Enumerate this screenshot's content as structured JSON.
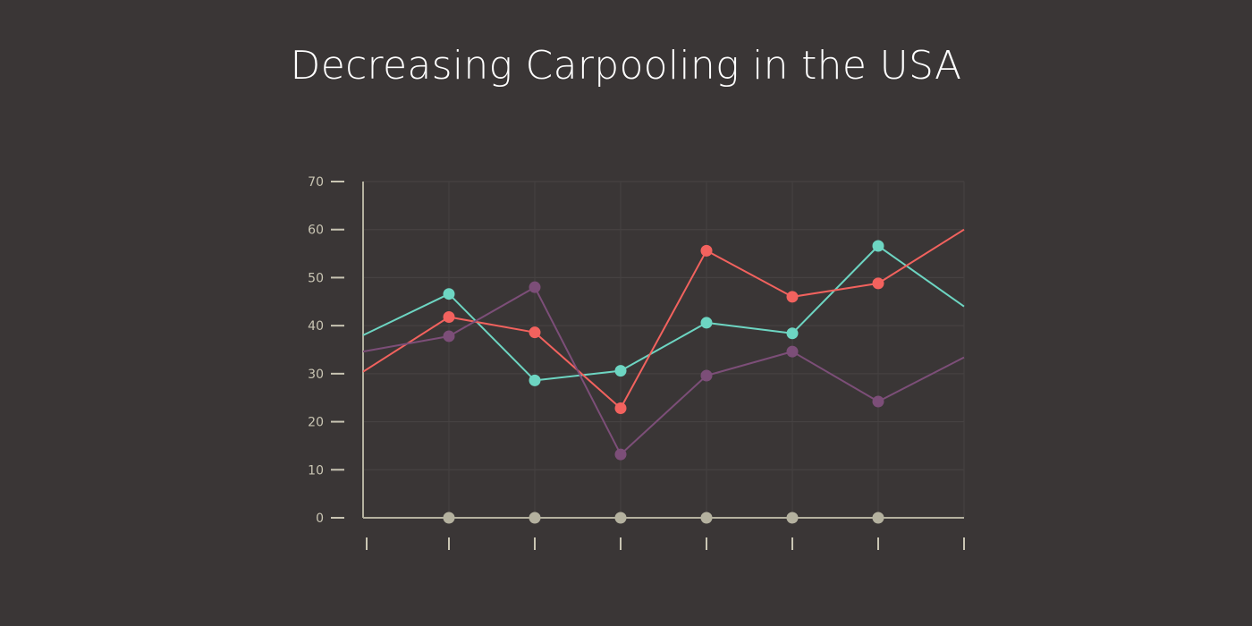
{
  "chart_data": {
    "type": "line",
    "title": "Decreasing Carpooling in the USA",
    "xlabel": "",
    "ylabel": "",
    "ylim": [
      0,
      70
    ],
    "yticks": [
      0,
      10,
      20,
      30,
      40,
      50,
      60,
      70
    ],
    "x": [
      0,
      1,
      2,
      3,
      4,
      5,
      6,
      7
    ],
    "grid": true,
    "series": [
      {
        "color": "#6dd5c2",
        "values": [
          38,
          46.6,
          28.6,
          30.6,
          40.6,
          38.4,
          56.6,
          44
        ]
      },
      {
        "color": "#f2625e",
        "values": [
          30.4,
          41.8,
          38.6,
          22.8,
          55.6,
          46,
          48.8,
          60
        ]
      },
      {
        "color": "#7c4e78",
        "values": [
          34.6,
          37.8,
          48,
          13.2,
          29.6,
          34.6,
          24.2,
          33.4
        ]
      }
    ],
    "baseline_markers": {
      "color": "#b4b19f",
      "values": [
        0,
        0,
        0,
        0,
        0,
        0
      ]
    }
  }
}
